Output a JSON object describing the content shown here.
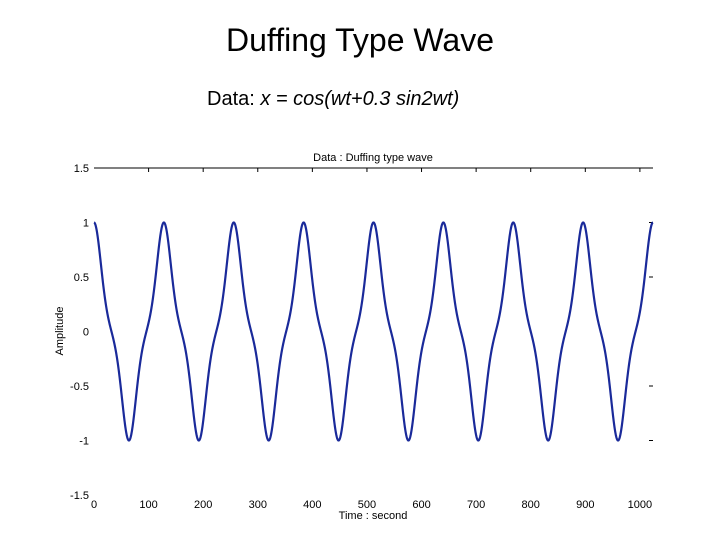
{
  "slide": {
    "title": "Duffing Type Wave",
    "subtitle_prefix": "Data:  ",
    "subtitle_formula": "x = cos(wt+0.3 sin2wt)"
  },
  "chart_data": {
    "type": "line",
    "title": "Data : Duffing type wave",
    "xlabel": "Time : second",
    "ylabel": "Amplitude",
    "xlim": [
      0,
      1024
    ],
    "ylim": [
      -1.5,
      1.5
    ],
    "xticks": [
      0,
      100,
      200,
      300,
      400,
      500,
      600,
      700,
      800,
      900,
      1000
    ],
    "yticks": [
      -1.5,
      -1,
      -0.5,
      0,
      0.5,
      1,
      1.5
    ],
    "xtick_labels": [
      "0",
      "100",
      "200",
      "300",
      "400",
      "500",
      "600",
      "700",
      "800",
      "900",
      "1000"
    ],
    "ytick_labels": [
      "-1.5",
      "-1",
      "-0.5",
      "0",
      "0.5",
      "1",
      "1.5"
    ],
    "grid": false,
    "series": [
      {
        "formula": "x = cos(wt+0.3 sin2wt)",
        "period_seconds": 128,
        "x_start": 0,
        "x_end": 1024,
        "color": "#1a2a9a"
      }
    ]
  }
}
